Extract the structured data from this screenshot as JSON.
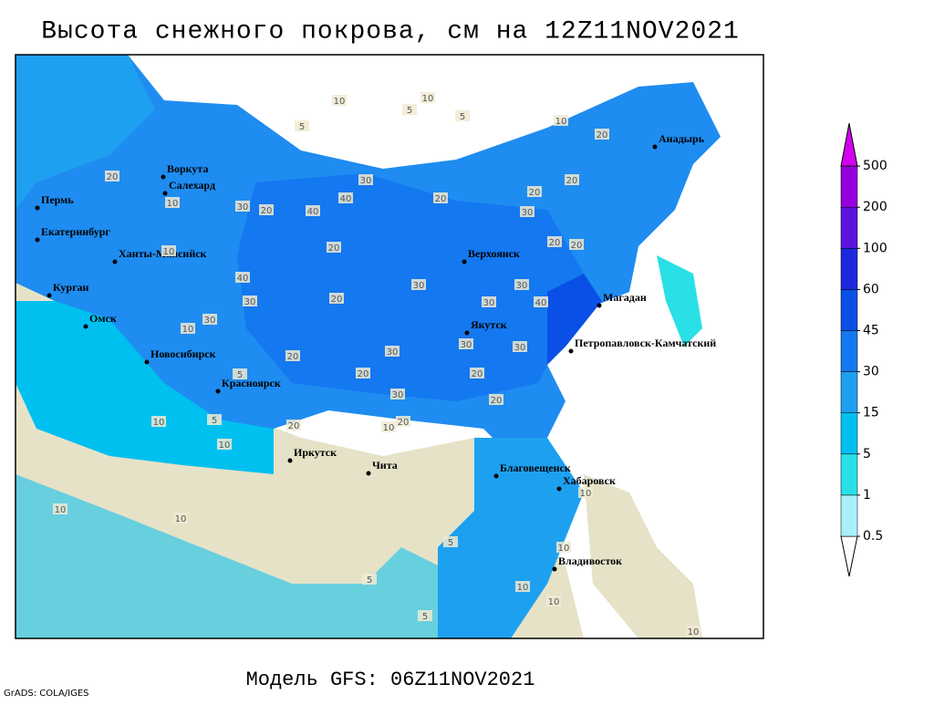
{
  "title": "Высота снежного покрова, см на 12Z11NOV2021",
  "cities": [
    "Воркута",
    "Салехард",
    "Пермь",
    "Екатеринбург",
    "Ханты-Мансийск",
    "Курган",
    "Омск",
    "Новосибирск",
    "Красноярск",
    "Иркутск",
    "Чита",
    "Верхоянск",
    "Якутск",
    "Магадан",
    "Петропавловск-Камчатский",
    "Анадырь",
    "Благовещенск",
    "Хабаровск",
    "Владивосток"
  ],
  "contour_labels": [
    10,
    10,
    5,
    5,
    10,
    5,
    20,
    10,
    20,
    30,
    40,
    30,
    40,
    20,
    20,
    30,
    30,
    20,
    30,
    20,
    30,
    20,
    30,
    30,
    30,
    20,
    20,
    30,
    10,
    20,
    20,
    40,
    20,
    30,
    20,
    10,
    10,
    10,
    10,
    10,
    20,
    5,
    5,
    5,
    10,
    10,
    10,
    5,
    5,
    10,
    10,
    30,
    10,
    40,
    20,
    20
  ],
  "legend": {
    "levels": [
      0.5,
      1,
      5,
      15,
      30,
      45,
      60,
      100,
      200,
      500
    ],
    "colors": [
      "#ffffff",
      "#a8f0fa",
      "#28e0e6",
      "#00c0f0",
      "#1ea0f0",
      "#1478f0",
      "#0a50e6",
      "#1e28dc",
      "#5a14dc",
      "#9600dc",
      "#d200f0"
    ]
  },
  "footer": "Модель GFS: 06Z11NOV2021",
  "credit": "GrADS: COLA/IGES"
}
